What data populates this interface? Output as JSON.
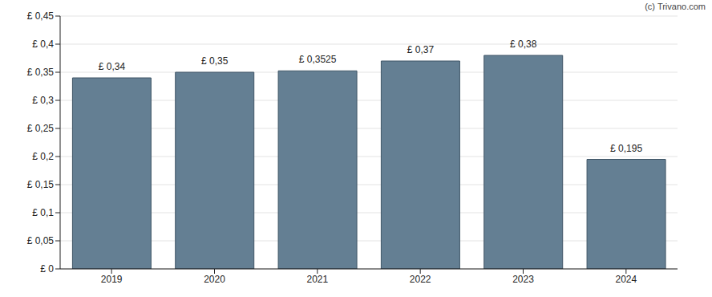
{
  "chart_data": {
    "type": "bar",
    "source": "(c) Trivano.com",
    "categories": [
      "2019",
      "2020",
      "2021",
      "2022",
      "2023",
      "2024"
    ],
    "values": [
      0.34,
      0.35,
      0.3525,
      0.37,
      0.38,
      0.195
    ],
    "value_labels": [
      "£ 0,34",
      "£ 0,35",
      "£ 0,3525",
      "£ 0,37",
      "£ 0,38",
      "£ 0,195"
    ],
    "data_labels": true,
    "color": "#647f93",
    "ylim": [
      0,
      0.45
    ],
    "yticks": [
      {
        "value": 0,
        "label": "£ 0"
      },
      {
        "value": 0.05,
        "label": "£ 0,05"
      },
      {
        "value": 0.1,
        "label": "£ 0,1"
      },
      {
        "value": 0.15,
        "label": "£ 0,15"
      },
      {
        "value": 0.2,
        "label": "£ 0,2"
      },
      {
        "value": 0.25,
        "label": "£ 0,25"
      },
      {
        "value": 0.3,
        "label": "£ 0,3"
      },
      {
        "value": 0.35,
        "label": "£ 0,35"
      },
      {
        "value": 0.4,
        "label": "£ 0,4"
      },
      {
        "value": 0.45,
        "label": "£ 0,45"
      }
    ],
    "grid": true
  }
}
